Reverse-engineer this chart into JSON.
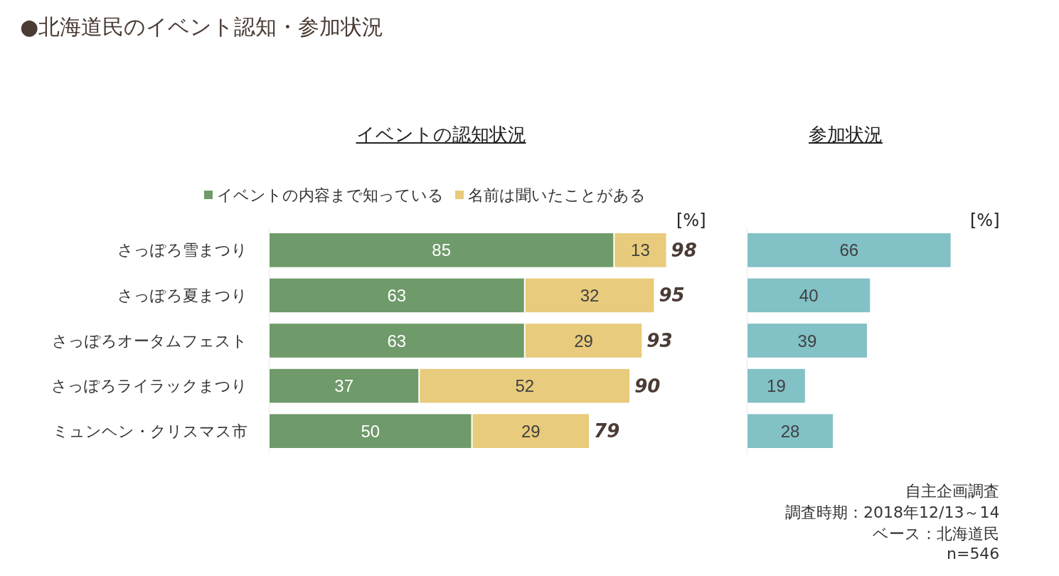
{
  "chart_data": [
    {
      "type": "bar",
      "orientation": "horizontal",
      "stacked": true,
      "title": "●北海道民のイベント認知・参加状況",
      "subtitle": "イベントの認知状況",
      "xlabel": "[%]",
      "categories": [
        "さっぽろ雪まつり",
        "さっぽろ夏まつり",
        "さっぽろオータムフェスト",
        "さっぽろライラックまつり",
        "ミュンヘン・クリスマス市"
      ],
      "series": [
        {
          "name": "イベントの内容まで知っている",
          "color": "#6f9a6a",
          "values": [
            85,
            63,
            63,
            37,
            50
          ]
        },
        {
          "name": "名前は聞いたことがある",
          "color": "#e8cb7c",
          "values": [
            13,
            32,
            29,
            52,
            29
          ]
        }
      ],
      "totals": [
        "98",
        "95",
        "93",
        "90",
        "79"
      ],
      "data_labels": true,
      "legend": "top",
      "tick_labels": "y"
    },
    {
      "type": "bar",
      "orientation": "horizontal",
      "subtitle": "参加状況",
      "xlabel": "[%]",
      "categories": [
        null,
        null,
        null,
        null,
        null
      ],
      "series": [
        {
          "color": "#82c1c6",
          "values": [
            66,
            40,
            39,
            19,
            28
          ]
        }
      ],
      "data_labels": true,
      "tick_labels": false,
      "annotations": [
        "自主企画調査",
        "調査時期：2018年12/13～14",
        "ベース：北海道民",
        "n=546"
      ]
    }
  ]
}
